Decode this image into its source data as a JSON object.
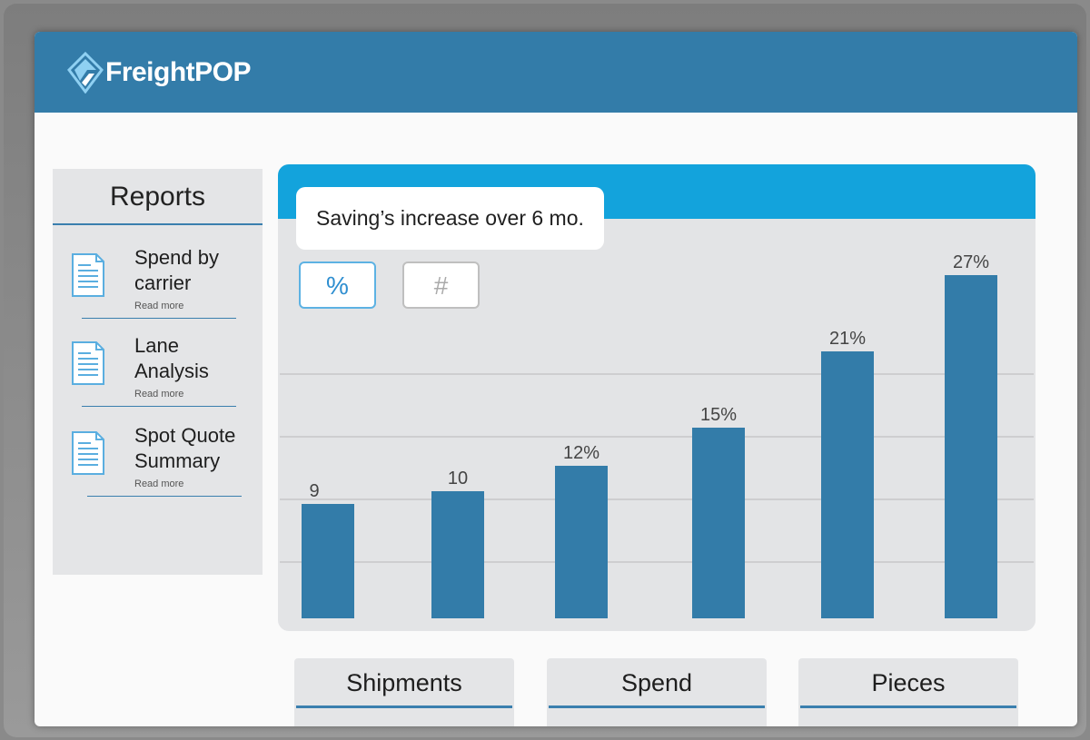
{
  "app": {
    "brand": "FreightPOP"
  },
  "colors": {
    "header": "#337ca9",
    "chart_header": "#13a3dc",
    "bar": "#337ca9",
    "panel": "#e3e4e6"
  },
  "reports": {
    "title": "Reports",
    "items": [
      {
        "label_line1": "Spend by",
        "label_line2": "carrier",
        "more": "Read more",
        "icon": "document-icon"
      },
      {
        "label_line1": "Lane",
        "label_line2": "Analysis",
        "more": "Read more",
        "icon": "document-icon"
      },
      {
        "label_line1": "Spot Quote",
        "label_line2": "Summary",
        "more": "Read more",
        "icon": "document-icon"
      }
    ]
  },
  "chart": {
    "title": "Saving’s increase over 6 mo.",
    "toggles": {
      "percent": "%",
      "count": "#"
    }
  },
  "chart_data": {
    "type": "bar",
    "title": "Saving’s increase over 6 mo.",
    "categories": [
      "",
      "",
      "",
      "",
      "",
      ""
    ],
    "values": [
      9,
      10,
      12,
      15,
      21,
      27
    ],
    "data_labels": [
      "9",
      "10",
      "12%",
      "15%",
      "21%",
      "27%"
    ],
    "ylim": [
      0,
      30
    ],
    "grid": true,
    "legend": "none"
  },
  "stats": [
    {
      "label": "Shipments"
    },
    {
      "label": "Spend"
    },
    {
      "label": "Pieces"
    }
  ]
}
